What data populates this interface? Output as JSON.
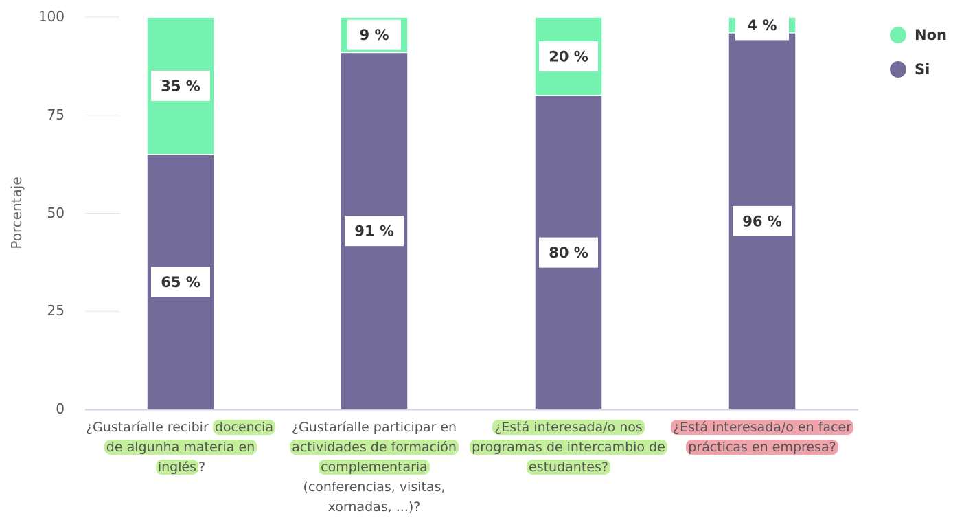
{
  "chart_data": {
    "type": "bar",
    "stacked": true,
    "ylabel": "Porcentaje",
    "ylim": [
      0,
      100
    ],
    "yticks": [
      "0",
      "25",
      "50",
      "75",
      "100"
    ],
    "grid": true,
    "legend_position": "top-right",
    "categories": [
      [
        "¿Gustaríalle recibir ",
        {
          "hl": "green",
          "t": "docencia de algunha materia en inglés"
        },
        "?"
      ],
      [
        "¿Gustaríalle participar en ",
        {
          "hl": "green",
          "t": "actividades de formación complementaria"
        },
        " (conferencias, visitas, xornadas, ...)?"
      ],
      [
        {
          "hl": "green",
          "t": "¿Está interesada/o nos programas de intercambio de estudantes?"
        }
      ],
      [
        {
          "hl": "red",
          "t": "¿Está interesada/o en facer prácticas en empresa?"
        }
      ]
    ],
    "series": [
      {
        "name": "Si",
        "color": "#736c9a",
        "values": [
          65,
          91,
          80,
          96
        ],
        "labels": [
          "65 %",
          "91 %",
          "80 %",
          "96 %"
        ]
      },
      {
        "name": "Non",
        "color": "#76f2b0",
        "values": [
          35,
          9,
          20,
          4
        ],
        "labels": [
          "35 %",
          "9 %",
          "20 %",
          "4 %"
        ]
      }
    ],
    "legend": [
      {
        "name": "Non",
        "color": "#76f2b0"
      },
      {
        "name": "Si",
        "color": "#736c9a"
      }
    ]
  }
}
